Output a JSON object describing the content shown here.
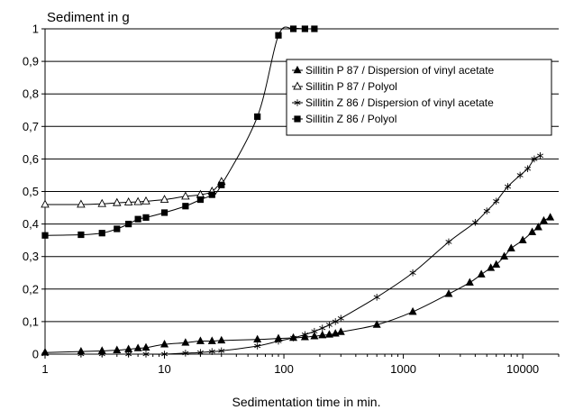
{
  "chart_data": {
    "type": "scatter",
    "title": "",
    "ylabel": "Sediment in g",
    "xlabel": "Sedimentation time in min.",
    "x_scale": "log",
    "xlim": [
      1,
      20000
    ],
    "ylim": [
      0,
      1
    ],
    "grid": {
      "y": true,
      "x": false
    },
    "legend_position": "center-right",
    "x_ticks": [
      {
        "value": 1,
        "label": "1"
      },
      {
        "value": 10,
        "label": "10"
      },
      {
        "value": 100,
        "label": "100"
      },
      {
        "value": 1000,
        "label": "1000"
      },
      {
        "value": 10000,
        "label": "10000"
      }
    ],
    "y_ticks": [
      {
        "value": 0,
        "label": "0"
      },
      {
        "value": 0.1,
        "label": "0,1"
      },
      {
        "value": 0.2,
        "label": "0,2"
      },
      {
        "value": 0.3,
        "label": "0,3"
      },
      {
        "value": 0.4,
        "label": "0,4"
      },
      {
        "value": 0.5,
        "label": "0,5"
      },
      {
        "value": 0.6,
        "label": "0,6"
      },
      {
        "value": 0.7,
        "label": "0,7"
      },
      {
        "value": 0.8,
        "label": "0,8"
      },
      {
        "value": 0.9,
        "label": "0,9"
      },
      {
        "value": 1,
        "label": "1"
      }
    ],
    "series": [
      {
        "name": "Sillitin P 87 / Dispersion of vinyl acetate",
        "marker": "filled-triangle",
        "x": [
          1,
          2,
          3,
          4,
          5,
          6,
          7,
          10,
          15,
          20,
          25,
          30,
          60,
          90,
          120,
          150,
          180,
          210,
          240,
          270,
          300,
          600,
          1200,
          2400,
          3600,
          4500,
          5400,
          6000,
          7000,
          8000,
          10000,
          12000,
          13500,
          15000,
          17000
        ],
        "y": [
          0.005,
          0.008,
          0.01,
          0.012,
          0.015,
          0.018,
          0.02,
          0.03,
          0.035,
          0.04,
          0.04,
          0.042,
          0.045,
          0.048,
          0.05,
          0.052,
          0.055,
          0.058,
          0.06,
          0.063,
          0.068,
          0.09,
          0.13,
          0.185,
          0.22,
          0.245,
          0.265,
          0.275,
          0.3,
          0.325,
          0.35,
          0.375,
          0.39,
          0.41,
          0.42
        ]
      },
      {
        "name": "Sillitin P 87 / Polyol",
        "marker": "open-triangle",
        "x": [
          1,
          2,
          3,
          4,
          5,
          6,
          7,
          10,
          15,
          20,
          25,
          30
        ],
        "y": [
          0.46,
          0.46,
          0.462,
          0.465,
          0.467,
          0.468,
          0.47,
          0.475,
          0.485,
          0.49,
          0.5,
          0.53
        ]
      },
      {
        "name": "Sillitin Z 86 / Dispersion of vinyl acetate",
        "marker": "star",
        "x": [
          1,
          2,
          3,
          5,
          7,
          10,
          15,
          20,
          25,
          30,
          60,
          90,
          120,
          150,
          180,
          210,
          240,
          270,
          300,
          600,
          1200,
          2400,
          4000,
          5000,
          6000,
          7500,
          9500,
          11000,
          12500,
          14000
        ],
        "y": [
          0,
          0,
          0,
          0,
          0,
          0,
          0.003,
          0.005,
          0.008,
          0.01,
          0.025,
          0.04,
          0.05,
          0.06,
          0.07,
          0.08,
          0.09,
          0.1,
          0.11,
          0.175,
          0.25,
          0.345,
          0.405,
          0.44,
          0.47,
          0.515,
          0.55,
          0.57,
          0.6,
          0.61
        ]
      },
      {
        "name": "Sillitin Z 86 / Polyol",
        "marker": "filled-square",
        "x": [
          1,
          2,
          3,
          4,
          5,
          6,
          7,
          10,
          15,
          20,
          25,
          30,
          60,
          90,
          120,
          150,
          180
        ],
        "y": [
          0.365,
          0.367,
          0.372,
          0.385,
          0.4,
          0.415,
          0.42,
          0.435,
          0.455,
          0.475,
          0.49,
          0.52,
          0.73,
          0.98,
          1.0,
          1.0,
          1.0
        ]
      }
    ]
  }
}
